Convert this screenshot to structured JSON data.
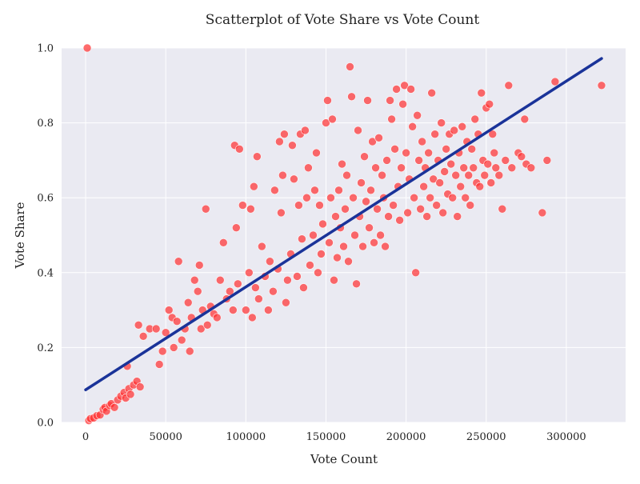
{
  "chart_data": {
    "type": "scatter",
    "title": "Scatterplot of Vote Share vs Vote Count",
    "xlabel": "Vote Count",
    "ylabel": "Vote Share",
    "xlim": [
      -15000,
      337000
    ],
    "ylim": [
      0,
      1
    ],
    "xticks": [
      0,
      50000,
      100000,
      150000,
      200000,
      250000,
      300000
    ],
    "yticks": [
      0.0,
      0.2,
      0.4,
      0.6,
      0.8,
      1.0
    ],
    "xtick_labels": [
      "0",
      "50000",
      "100000",
      "150000",
      "200000",
      "250000",
      "300000"
    ],
    "ytick_labels": [
      "0.0",
      "0.2",
      "0.4",
      "0.6",
      "0.8",
      "1.0"
    ],
    "grid": true,
    "colors": {
      "background": "#eaeaf2",
      "points": "#ff3333",
      "fit_line": "#1a3399",
      "grid": "#ffffff"
    },
    "series": [
      {
        "kind": "points",
        "points": [
          [
            1000,
            1.0
          ],
          [
            2000,
            0.005
          ],
          [
            3000,
            0.01
          ],
          [
            5000,
            0.012
          ],
          [
            7000,
            0.018
          ],
          [
            9000,
            0.02
          ],
          [
            11000,
            0.035
          ],
          [
            12000,
            0.04
          ],
          [
            13000,
            0.03
          ],
          [
            15000,
            0.045
          ],
          [
            16000,
            0.05
          ],
          [
            18000,
            0.04
          ],
          [
            20000,
            0.06
          ],
          [
            22000,
            0.07
          ],
          [
            24000,
            0.08
          ],
          [
            25000,
            0.065
          ],
          [
            27000,
            0.09
          ],
          [
            28000,
            0.075
          ],
          [
            30000,
            0.1
          ],
          [
            32000,
            0.11
          ],
          [
            34000,
            0.095
          ],
          [
            26000,
            0.15
          ],
          [
            33000,
            0.26
          ],
          [
            36000,
            0.23
          ],
          [
            40000,
            0.25
          ],
          [
            44000,
            0.25
          ],
          [
            46000,
            0.155
          ],
          [
            48000,
            0.19
          ],
          [
            50000,
            0.24
          ],
          [
            52000,
            0.3
          ],
          [
            54000,
            0.28
          ],
          [
            55000,
            0.2
          ],
          [
            57000,
            0.27
          ],
          [
            58000,
            0.43
          ],
          [
            60000,
            0.22
          ],
          [
            62000,
            0.25
          ],
          [
            64000,
            0.32
          ],
          [
            65000,
            0.19
          ],
          [
            66000,
            0.28
          ],
          [
            68000,
            0.38
          ],
          [
            70000,
            0.35
          ],
          [
            71000,
            0.42
          ],
          [
            72000,
            0.25
          ],
          [
            73000,
            0.3
          ],
          [
            75000,
            0.57
          ],
          [
            76000,
            0.26
          ],
          [
            78000,
            0.31
          ],
          [
            80000,
            0.29
          ],
          [
            82000,
            0.28
          ],
          [
            84000,
            0.38
          ],
          [
            86000,
            0.48
          ],
          [
            88000,
            0.33
          ],
          [
            90000,
            0.35
          ],
          [
            92000,
            0.3
          ],
          [
            93000,
            0.74
          ],
          [
            94000,
            0.52
          ],
          [
            95000,
            0.37
          ],
          [
            96000,
            0.73
          ],
          [
            98000,
            0.58
          ],
          [
            100000,
            0.3
          ],
          [
            102000,
            0.4
          ],
          [
            103000,
            0.57
          ],
          [
            104000,
            0.28
          ],
          [
            105000,
            0.63
          ],
          [
            106000,
            0.36
          ],
          [
            107000,
            0.71
          ],
          [
            108000,
            0.33
          ],
          [
            110000,
            0.47
          ],
          [
            112000,
            0.39
          ],
          [
            114000,
            0.3
          ],
          [
            115000,
            0.43
          ],
          [
            117000,
            0.35
          ],
          [
            118000,
            0.62
          ],
          [
            120000,
            0.41
          ],
          [
            121000,
            0.75
          ],
          [
            122000,
            0.56
          ],
          [
            123000,
            0.66
          ],
          [
            124000,
            0.77
          ],
          [
            125000,
            0.32
          ],
          [
            126000,
            0.38
          ],
          [
            128000,
            0.45
          ],
          [
            129000,
            0.74
          ],
          [
            130000,
            0.65
          ],
          [
            132000,
            0.39
          ],
          [
            133000,
            0.58
          ],
          [
            134000,
            0.77
          ],
          [
            135000,
            0.49
          ],
          [
            136000,
            0.36
          ],
          [
            137000,
            0.78
          ],
          [
            138000,
            0.6
          ],
          [
            139000,
            0.68
          ],
          [
            140000,
            0.42
          ],
          [
            142000,
            0.5
          ],
          [
            143000,
            0.62
          ],
          [
            144000,
            0.72
          ],
          [
            145000,
            0.4
          ],
          [
            146000,
            0.58
          ],
          [
            147000,
            0.45
          ],
          [
            148000,
            0.53
          ],
          [
            150000,
            0.8
          ],
          [
            151000,
            0.86
          ],
          [
            152000,
            0.48
          ],
          [
            153000,
            0.6
          ],
          [
            154000,
            0.81
          ],
          [
            155000,
            0.38
          ],
          [
            156000,
            0.55
          ],
          [
            157000,
            0.44
          ],
          [
            158000,
            0.62
          ],
          [
            159000,
            0.52
          ],
          [
            160000,
            0.69
          ],
          [
            161000,
            0.47
          ],
          [
            162000,
            0.57
          ],
          [
            163000,
            0.66
          ],
          [
            164000,
            0.43
          ],
          [
            165000,
            0.95
          ],
          [
            166000,
            0.87
          ],
          [
            167000,
            0.6
          ],
          [
            168000,
            0.5
          ],
          [
            169000,
            0.37
          ],
          [
            170000,
            0.78
          ],
          [
            171000,
            0.55
          ],
          [
            172000,
            0.64
          ],
          [
            173000,
            0.47
          ],
          [
            174000,
            0.71
          ],
          [
            175000,
            0.59
          ],
          [
            176000,
            0.86
          ],
          [
            177000,
            0.52
          ],
          [
            178000,
            0.62
          ],
          [
            179000,
            0.75
          ],
          [
            180000,
            0.48
          ],
          [
            181000,
            0.68
          ],
          [
            182000,
            0.57
          ],
          [
            183000,
            0.76
          ],
          [
            184000,
            0.5
          ],
          [
            185000,
            0.66
          ],
          [
            186000,
            0.6
          ],
          [
            187000,
            0.47
          ],
          [
            188000,
            0.7
          ],
          [
            189000,
            0.55
          ],
          [
            190000,
            0.86
          ],
          [
            191000,
            0.81
          ],
          [
            192000,
            0.58
          ],
          [
            193000,
            0.73
          ],
          [
            194000,
            0.89
          ],
          [
            195000,
            0.63
          ],
          [
            196000,
            0.54
          ],
          [
            197000,
            0.68
          ],
          [
            198000,
            0.85
          ],
          [
            199000,
            0.9
          ],
          [
            200000,
            0.72
          ],
          [
            201000,
            0.56
          ],
          [
            202000,
            0.65
          ],
          [
            203000,
            0.89
          ],
          [
            204000,
            0.79
          ],
          [
            205000,
            0.6
          ],
          [
            206000,
            0.4
          ],
          [
            207000,
            0.82
          ],
          [
            208000,
            0.7
          ],
          [
            209000,
            0.57
          ],
          [
            210000,
            0.75
          ],
          [
            211000,
            0.63
          ],
          [
            212000,
            0.68
          ],
          [
            213000,
            0.55
          ],
          [
            214000,
            0.72
          ],
          [
            215000,
            0.6
          ],
          [
            216000,
            0.88
          ],
          [
            217000,
            0.65
          ],
          [
            218000,
            0.77
          ],
          [
            219000,
            0.58
          ],
          [
            220000,
            0.7
          ],
          [
            221000,
            0.64
          ],
          [
            222000,
            0.8
          ],
          [
            223000,
            0.56
          ],
          [
            224000,
            0.67
          ],
          [
            225000,
            0.73
          ],
          [
            226000,
            0.61
          ],
          [
            227000,
            0.77
          ],
          [
            228000,
            0.69
          ],
          [
            229000,
            0.6
          ],
          [
            230000,
            0.78
          ],
          [
            231000,
            0.66
          ],
          [
            232000,
            0.55
          ],
          [
            233000,
            0.72
          ],
          [
            234000,
            0.63
          ],
          [
            235000,
            0.79
          ],
          [
            236000,
            0.68
          ],
          [
            237000,
            0.6
          ],
          [
            238000,
            0.75
          ],
          [
            239000,
            0.66
          ],
          [
            240000,
            0.58
          ],
          [
            241000,
            0.73
          ],
          [
            242000,
            0.68
          ],
          [
            243000,
            0.81
          ],
          [
            244000,
            0.64
          ],
          [
            245000,
            0.77
          ],
          [
            246000,
            0.63
          ],
          [
            247000,
            0.88
          ],
          [
            248000,
            0.7
          ],
          [
            249000,
            0.66
          ],
          [
            250000,
            0.84
          ],
          [
            251000,
            0.69
          ],
          [
            252000,
            0.85
          ],
          [
            253000,
            0.64
          ],
          [
            254000,
            0.77
          ],
          [
            255000,
            0.72
          ],
          [
            256000,
            0.68
          ],
          [
            258000,
            0.66
          ],
          [
            260000,
            0.57
          ],
          [
            262000,
            0.7
          ],
          [
            264000,
            0.9
          ],
          [
            266000,
            0.68
          ],
          [
            270000,
            0.72
          ],
          [
            272000,
            0.71
          ],
          [
            274000,
            0.81
          ],
          [
            275000,
            0.69
          ],
          [
            278000,
            0.68
          ],
          [
            285000,
            0.56
          ],
          [
            288000,
            0.7
          ],
          [
            293000,
            0.91
          ],
          [
            322000,
            0.9
          ]
        ]
      },
      {
        "kind": "fit",
        "points": [
          [
            0,
            0.087
          ],
          [
            322000,
            0.972
          ]
        ]
      }
    ]
  }
}
